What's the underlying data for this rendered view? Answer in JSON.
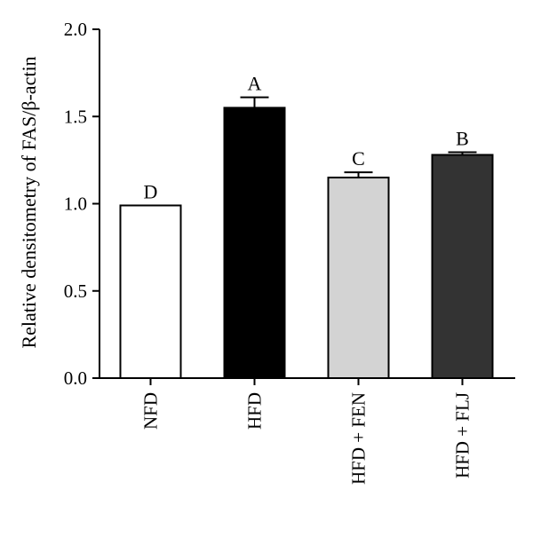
{
  "chart_data": {
    "type": "bar",
    "categories": [
      "NFD",
      "HFD",
      "HFD + FEN",
      "HFD + FLJ"
    ],
    "values": [
      0.99,
      1.55,
      1.15,
      1.28
    ],
    "errors": [
      0.0,
      0.06,
      0.03,
      0.015
    ],
    "significance_letters": [
      "D",
      "A",
      "C",
      "B"
    ],
    "bar_fills": [
      "#ffffff",
      "#000000",
      "#d3d3d3",
      "#333333"
    ],
    "title": "",
    "xlabel": "",
    "ylabel": "Relative densitometry of FAS/β-actin",
    "ylim": [
      0,
      2.0
    ],
    "yticks": [
      "0.0",
      "0.5",
      "1.0",
      "1.5",
      "2.0"
    ],
    "grid": false,
    "legend": "none"
  }
}
